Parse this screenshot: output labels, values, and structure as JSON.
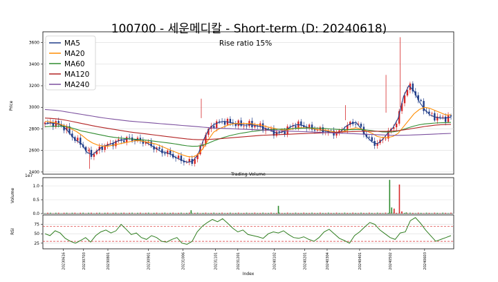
{
  "chart_data": {
    "type": "line",
    "title": "100700 - 세운메디칼 - Short-term (D: 20240618)",
    "annotation": "Rise ratio 15%",
    "price_panel": {
      "ylabel": "Price",
      "ylim": [
        2380,
        3700
      ],
      "yticks": [
        "2400",
        "2600",
        "2800",
        "3000",
        "3200",
        "3400",
        "3600"
      ],
      "grid": true,
      "legend_placement": "top-left",
      "series": [
        {
          "name": "MA5",
          "color": "#1f3c88",
          "values": [
            2845,
            2855,
            2850,
            2835,
            2800,
            2740,
            2690,
            2660,
            2580,
            2560,
            2600,
            2640,
            2650,
            2670,
            2690,
            2700,
            2710,
            2700,
            2690,
            2680,
            2650,
            2620,
            2590,
            2580,
            2560,
            2530,
            2510,
            2490,
            2500,
            2560,
            2690,
            2790,
            2840,
            2860,
            2870,
            2860,
            2850,
            2840,
            2835,
            2840,
            2830,
            2820,
            2800,
            2780,
            2760,
            2770,
            2800,
            2830,
            2840,
            2830,
            2810,
            2800,
            2790,
            2780,
            2770,
            2760,
            2770,
            2820,
            2850,
            2860,
            2800,
            2730,
            2680,
            2660,
            2700,
            2760,
            2810,
            2900,
            3100,
            3200,
            3150,
            3050,
            2980,
            2930,
            2910,
            2900,
            2900,
            2910
          ]
        },
        {
          "name": "MA20",
          "color": "#ff8c00",
          "values": [
            2870,
            2865,
            2855,
            2840,
            2825,
            2800,
            2775,
            2740,
            2700,
            2670,
            2650,
            2640,
            2640,
            2650,
            2660,
            2670,
            2680,
            2690,
            2690,
            2680,
            2670,
            2660,
            2640,
            2620,
            2600,
            2580,
            2560,
            2545,
            2540,
            2560,
            2620,
            2700,
            2770,
            2800,
            2820,
            2840,
            2850,
            2850,
            2850,
            2850,
            2840,
            2835,
            2820,
            2810,
            2800,
            2790,
            2790,
            2800,
            2810,
            2810,
            2810,
            2800,
            2790,
            2790,
            2780,
            2770,
            2770,
            2780,
            2800,
            2810,
            2800,
            2780,
            2760,
            2730,
            2720,
            2720,
            2730,
            2760,
            2820,
            2880,
            2940,
            2980,
            3000,
            2990,
            2970,
            2950,
            2930,
            2930
          ]
        },
        {
          "name": "MA60",
          "color": "#2e8b2e",
          "values": [
            2820,
            2822,
            2825,
            2826,
            2822,
            2810,
            2795,
            2780,
            2770,
            2760,
            2750,
            2740,
            2730,
            2722,
            2716,
            2712,
            2708,
            2704,
            2700,
            2696,
            2690,
            2684,
            2678,
            2672,
            2666,
            2658,
            2650,
            2643,
            2638,
            2640,
            2650,
            2668,
            2688,
            2706,
            2722,
            2736,
            2748,
            2758,
            2766,
            2774,
            2780,
            2786,
            2790,
            2794,
            2796,
            2798,
            2800,
            2802,
            2804,
            2806,
            2808,
            2808,
            2806,
            2804,
            2800,
            2797,
            2794,
            2792,
            2792,
            2794,
            2794,
            2790,
            2784,
            2778,
            2772,
            2770,
            2772,
            2780,
            2796,
            2812,
            2826,
            2838,
            2846,
            2850,
            2854,
            2856,
            2858,
            2860
          ]
        },
        {
          "name": "MA120",
          "color": "#b22222",
          "values": [
            2900,
            2898,
            2894,
            2888,
            2880,
            2870,
            2860,
            2850,
            2840,
            2830,
            2820,
            2812,
            2804,
            2796,
            2788,
            2780,
            2772,
            2766,
            2760,
            2754,
            2748,
            2742,
            2736,
            2730,
            2724,
            2718,
            2712,
            2706,
            2702,
            2700,
            2700,
            2702,
            2705,
            2708,
            2712,
            2716,
            2720,
            2724,
            2728,
            2732,
            2736,
            2740,
            2742,
            2744,
            2746,
            2748,
            2750,
            2752,
            2754,
            2756,
            2758,
            2760,
            2762,
            2764,
            2766,
            2768,
            2770,
            2772,
            2774,
            2776,
            2778,
            2778,
            2778,
            2778,
            2778,
            2778,
            2780,
            2784,
            2790,
            2798,
            2806,
            2814,
            2822,
            2828,
            2834,
            2838,
            2840,
            2842
          ]
        },
        {
          "name": "MA240",
          "color": "#7b4f9e",
          "values": [
            2980,
            2976,
            2972,
            2966,
            2958,
            2950,
            2942,
            2934,
            2926,
            2918,
            2910,
            2902,
            2896,
            2890,
            2884,
            2878,
            2872,
            2868,
            2864,
            2860,
            2856,
            2852,
            2848,
            2844,
            2840,
            2836,
            2832,
            2828,
            2824,
            2820,
            2816,
            2812,
            2808,
            2806,
            2804,
            2802,
            2800,
            2798,
            2796,
            2794,
            2792,
            2790,
            2788,
            2786,
            2784,
            2782,
            2780,
            2778,
            2776,
            2774,
            2772,
            2770,
            2768,
            2766,
            2764,
            2762,
            2760,
            2758,
            2756,
            2754,
            2752,
            2750,
            2748,
            2746,
            2744,
            2742,
            2740,
            2740,
            2741,
            2742,
            2744,
            2746,
            2748,
            2750,
            2752,
            2754,
            2756,
            2758
          ]
        }
      ]
    },
    "volume_panel": {
      "title": "Trading Volume",
      "ylabel": "Volume",
      "scale_label": "1e7",
      "ylim": [
        0,
        1.3
      ],
      "yticks": [
        "0.0",
        "0.5",
        "1.0"
      ],
      "grid": true,
      "spikes": [
        {
          "position": 0.36,
          "value": 0.12,
          "color": "#2e8b2e"
        },
        {
          "position": 0.575,
          "value": 0.28,
          "color": "#2e8b2e"
        },
        {
          "position": 0.849,
          "value": 1.22,
          "color": "#2e8b2e"
        },
        {
          "position": 0.854,
          "value": 0.22,
          "color": "#2e8b2e"
        },
        {
          "position": 0.86,
          "value": 0.18,
          "color": "#d62728"
        },
        {
          "position": 0.873,
          "value": 1.05,
          "color": "#d62728"
        },
        {
          "position": 0.879,
          "value": 0.08,
          "color": "#d62728"
        },
        {
          "position": 0.89,
          "value": 0.04,
          "color": "#2e8b2e"
        }
      ],
      "baseline_value": 0.02
    },
    "rsi_panel": {
      "ylabel": "RSI",
      "ylim": [
        10,
        100
      ],
      "yticks": [
        "25",
        "50",
        "75"
      ],
      "overbought": 70,
      "oversold": 30,
      "grid": true,
      "values": [
        50,
        45,
        58,
        52,
        38,
        30,
        25,
        32,
        40,
        28,
        45,
        55,
        60,
        52,
        58,
        75,
        62,
        48,
        52,
        40,
        35,
        45,
        40,
        30,
        28,
        35,
        40,
        25,
        22,
        30,
        55,
        70,
        80,
        88,
        82,
        90,
        78,
        65,
        55,
        60,
        48,
        45,
        42,
        38,
        50,
        55,
        52,
        58,
        48,
        40,
        38,
        42,
        35,
        30,
        40,
        55,
        62,
        50,
        38,
        32,
        25,
        45,
        55,
        68,
        80,
        75,
        60,
        50,
        40,
        35,
        52,
        55,
        85,
        93,
        78,
        60,
        45,
        30,
        35,
        40,
        45
      ]
    },
    "x_axis": {
      "label": "Index",
      "tick_labels": [
        "20230616",
        "20230703",
        "20230801",
        "20230901",
        "20231006",
        "20231101",
        "20231201",
        "20240102",
        "20240201",
        "20240304",
        "20240401",
        "20240502",
        "20240603"
      ]
    }
  }
}
